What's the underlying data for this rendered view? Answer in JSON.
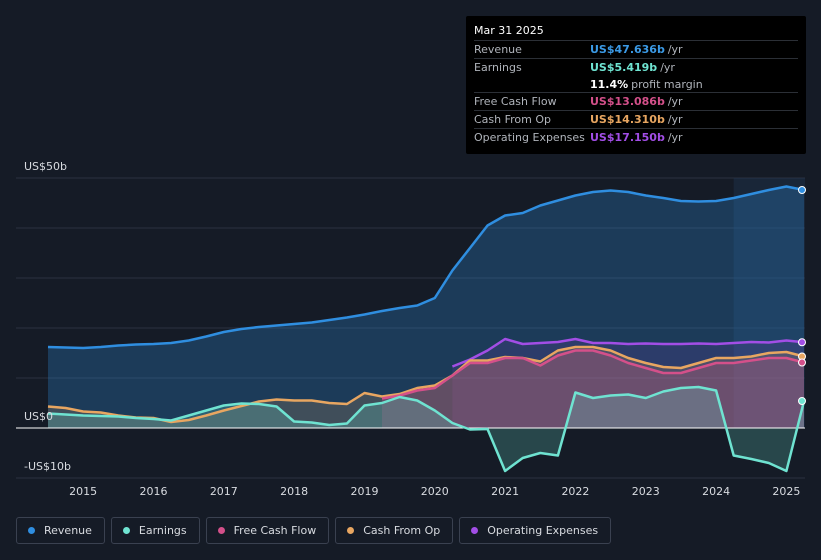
{
  "tooltip": {
    "date": "Mar 31 2025",
    "rows": [
      {
        "label": "Revenue",
        "value": "US$47.636b",
        "unit": "/yr",
        "color": "#3b9ae6"
      },
      {
        "label": "Earnings",
        "value": "US$5.419b",
        "unit": "/yr",
        "color": "#6fe3d1"
      },
      {
        "label": "",
        "value": "11.4%",
        "unit": "profit margin",
        "color": "#ffffff"
      },
      {
        "label": "Free Cash Flow",
        "value": "US$13.086b",
        "unit": "/yr",
        "color": "#d4508a"
      },
      {
        "label": "Cash From Op",
        "value": "US$14.310b",
        "unit": "/yr",
        "color": "#e8a661"
      },
      {
        "label": "Operating Expenses",
        "value": "US$17.150b",
        "unit": "/yr",
        "color": "#a24ee6"
      }
    ]
  },
  "legend": [
    {
      "label": "Revenue",
      "color": "#2f8ee0"
    },
    {
      "label": "Earnings",
      "color": "#6fe3d1"
    },
    {
      "label": "Free Cash Flow",
      "color": "#d4508a"
    },
    {
      "label": "Cash From Op",
      "color": "#e8a661"
    },
    {
      "label": "Operating Expenses",
      "color": "#a24ee6"
    }
  ],
  "chart_data": {
    "type": "area",
    "title": "",
    "xlabel": "",
    "ylabel": "",
    "ylim": [
      -10,
      50
    ],
    "xlim": [
      2014.45,
      2025.25
    ],
    "y_tick_labels": [
      "US$50b",
      "US$0",
      "-US$10b"
    ],
    "x_tick_labels": [
      "2015",
      "2016",
      "2017",
      "2018",
      "2019",
      "2020",
      "2021",
      "2022",
      "2023",
      "2024",
      "2025"
    ],
    "x_ticks": [
      2015,
      2016,
      2017,
      2018,
      2019,
      2020,
      2021,
      2022,
      2023,
      2024,
      2025
    ],
    "forecast_start": 2024.25,
    "series": [
      {
        "name": "Revenue",
        "color": "#2f8ee0",
        "points": [
          [
            2014.5,
            16.2
          ],
          [
            2014.75,
            16.1
          ],
          [
            2015,
            16.0
          ],
          [
            2015.25,
            16.2
          ],
          [
            2015.5,
            16.5
          ],
          [
            2015.75,
            16.7
          ],
          [
            2016,
            16.8
          ],
          [
            2016.25,
            17.0
          ],
          [
            2016.5,
            17.5
          ],
          [
            2016.75,
            18.3
          ],
          [
            2017,
            19.2
          ],
          [
            2017.25,
            19.8
          ],
          [
            2017.5,
            20.2
          ],
          [
            2017.75,
            20.5
          ],
          [
            2018,
            20.8
          ],
          [
            2018.25,
            21.1
          ],
          [
            2018.5,
            21.6
          ],
          [
            2018.75,
            22.1
          ],
          [
            2019,
            22.7
          ],
          [
            2019.25,
            23.4
          ],
          [
            2019.5,
            24.0
          ],
          [
            2019.75,
            24.5
          ],
          [
            2020,
            26.0
          ],
          [
            2020.25,
            31.5
          ],
          [
            2020.5,
            36.0
          ],
          [
            2020.75,
            40.5
          ],
          [
            2021,
            42.5
          ],
          [
            2021.25,
            43.0
          ],
          [
            2021.5,
            44.5
          ],
          [
            2021.75,
            45.5
          ],
          [
            2022,
            46.5
          ],
          [
            2022.25,
            47.2
          ],
          [
            2022.5,
            47.5
          ],
          [
            2022.75,
            47.2
          ],
          [
            2023,
            46.5
          ],
          [
            2023.25,
            46.0
          ],
          [
            2023.5,
            45.4
          ],
          [
            2023.75,
            45.3
          ],
          [
            2024,
            45.4
          ],
          [
            2024.25,
            46.0
          ],
          [
            2024.5,
            46.8
          ],
          [
            2024.75,
            47.6
          ],
          [
            2025,
            48.3
          ],
          [
            2025.25,
            47.6
          ]
        ]
      },
      {
        "name": "Earnings",
        "color": "#6fe3d1",
        "points": [
          [
            2014.5,
            2.9
          ],
          [
            2014.75,
            2.7
          ],
          [
            2015,
            2.5
          ],
          [
            2015.25,
            2.4
          ],
          [
            2015.5,
            2.3
          ],
          [
            2015.75,
            2.0
          ],
          [
            2016,
            1.8
          ],
          [
            2016.25,
            1.5
          ],
          [
            2016.5,
            2.5
          ],
          [
            2016.75,
            3.5
          ],
          [
            2017,
            4.5
          ],
          [
            2017.25,
            4.9
          ],
          [
            2017.5,
            4.8
          ],
          [
            2017.75,
            4.3
          ],
          [
            2018,
            1.3
          ],
          [
            2018.25,
            1.1
          ],
          [
            2018.5,
            0.6
          ],
          [
            2018.75,
            0.9
          ],
          [
            2019,
            4.5
          ],
          [
            2019.25,
            5.0
          ],
          [
            2019.5,
            6.2
          ],
          [
            2019.75,
            5.5
          ],
          [
            2020,
            3.5
          ],
          [
            2020.25,
            1.0
          ],
          [
            2020.5,
            -0.3
          ],
          [
            2020.75,
            -0.2
          ],
          [
            2021,
            -8.6
          ],
          [
            2021.25,
            -6.0
          ],
          [
            2021.5,
            -5.0
          ],
          [
            2021.75,
            -5.5
          ],
          [
            2022,
            7.1
          ],
          [
            2022.25,
            6.0
          ],
          [
            2022.5,
            6.5
          ],
          [
            2022.75,
            6.7
          ],
          [
            2023,
            6.0
          ],
          [
            2023.25,
            7.3
          ],
          [
            2023.5,
            8.0
          ],
          [
            2023.75,
            8.2
          ],
          [
            2024,
            7.5
          ],
          [
            2024.25,
            -5.5
          ],
          [
            2024.5,
            -6.2
          ],
          [
            2024.75,
            -7.0
          ],
          [
            2025,
            -8.6
          ],
          [
            2025.25,
            5.4
          ]
        ]
      },
      {
        "name": "Free Cash Flow",
        "color": "#d4508a",
        "points": [
          [
            2019.25,
            5.9
          ],
          [
            2019.5,
            6.5
          ],
          [
            2019.75,
            7.5
          ],
          [
            2020,
            8.0
          ],
          [
            2020.25,
            10.5
          ],
          [
            2020.5,
            13.0
          ],
          [
            2020.75,
            13.0
          ],
          [
            2021,
            14.0
          ],
          [
            2021.25,
            14.0
          ],
          [
            2021.5,
            12.5
          ],
          [
            2021.75,
            14.5
          ],
          [
            2022,
            15.5
          ],
          [
            2022.25,
            15.5
          ],
          [
            2022.5,
            14.5
          ],
          [
            2022.75,
            13.0
          ],
          [
            2023,
            12.0
          ],
          [
            2023.25,
            11.0
          ],
          [
            2023.5,
            11.0
          ],
          [
            2023.75,
            12.0
          ],
          [
            2024,
            13.0
          ],
          [
            2024.25,
            13.0
          ],
          [
            2024.5,
            13.5
          ],
          [
            2024.75,
            14.0
          ],
          [
            2025,
            14.0
          ],
          [
            2025.25,
            13.1
          ]
        ]
      },
      {
        "name": "Cash From Op",
        "color": "#e8a661",
        "points": [
          [
            2014.5,
            4.3
          ],
          [
            2014.75,
            4.0
          ],
          [
            2015,
            3.3
          ],
          [
            2015.25,
            3.1
          ],
          [
            2015.5,
            2.5
          ],
          [
            2015.75,
            2.1
          ],
          [
            2016,
            2.0
          ],
          [
            2016.25,
            1.2
          ],
          [
            2016.5,
            1.6
          ],
          [
            2016.75,
            2.5
          ],
          [
            2017,
            3.5
          ],
          [
            2017.25,
            4.4
          ],
          [
            2017.5,
            5.3
          ],
          [
            2017.75,
            5.7
          ],
          [
            2018,
            5.5
          ],
          [
            2018.25,
            5.5
          ],
          [
            2018.5,
            5.0
          ],
          [
            2018.75,
            4.8
          ],
          [
            2019,
            7.0
          ],
          [
            2019.25,
            6.3
          ],
          [
            2019.5,
            6.8
          ],
          [
            2019.75,
            8.0
          ],
          [
            2020,
            8.5
          ],
          [
            2020.25,
            10.5
          ],
          [
            2020.5,
            13.5
          ],
          [
            2020.75,
            13.5
          ],
          [
            2021,
            14.2
          ],
          [
            2021.25,
            14.0
          ],
          [
            2021.5,
            13.3
          ],
          [
            2021.75,
            15.5
          ],
          [
            2022,
            16.2
          ],
          [
            2022.25,
            16.2
          ],
          [
            2022.5,
            15.5
          ],
          [
            2022.75,
            14.0
          ],
          [
            2023,
            13.0
          ],
          [
            2023.25,
            12.2
          ],
          [
            2023.5,
            12.0
          ],
          [
            2023.75,
            13.0
          ],
          [
            2024,
            14.0
          ],
          [
            2024.25,
            14.0
          ],
          [
            2024.5,
            14.3
          ],
          [
            2024.75,
            15.0
          ],
          [
            2025,
            15.2
          ],
          [
            2025.25,
            14.3
          ]
        ]
      },
      {
        "name": "Operating Expenses",
        "color": "#a24ee6",
        "points": [
          [
            2020.25,
            12.3
          ],
          [
            2020.5,
            13.7
          ],
          [
            2020.75,
            15.5
          ],
          [
            2021,
            17.8
          ],
          [
            2021.25,
            16.8
          ],
          [
            2021.5,
            17.0
          ],
          [
            2021.75,
            17.2
          ],
          [
            2022,
            17.8
          ],
          [
            2022.25,
            17.0
          ],
          [
            2022.5,
            17.0
          ],
          [
            2022.75,
            16.8
          ],
          [
            2023,
            16.9
          ],
          [
            2023.25,
            16.8
          ],
          [
            2023.5,
            16.8
          ],
          [
            2023.75,
            16.9
          ],
          [
            2024,
            16.8
          ],
          [
            2024.25,
            17.0
          ],
          [
            2024.5,
            17.2
          ],
          [
            2024.75,
            17.1
          ],
          [
            2025,
            17.5
          ],
          [
            2025.25,
            17.15
          ]
        ]
      }
    ]
  }
}
